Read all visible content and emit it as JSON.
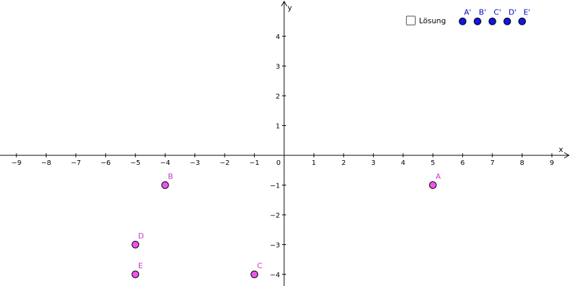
{
  "axes": {
    "x_label": "x",
    "y_label": "y",
    "x_ticks": [
      "−9",
      "−8",
      "−7",
      "−6",
      "−5",
      "−4",
      "−3",
      "−2",
      "−1",
      "1",
      "2",
      "3",
      "4",
      "5",
      "6",
      "7",
      "8",
      "9"
    ],
    "x_tick_values": [
      -9,
      -8,
      -7,
      -6,
      -5,
      -4,
      -3,
      -2,
      -1,
      1,
      2,
      3,
      4,
      5,
      6,
      7,
      8,
      9
    ],
    "y_ticks": [
      "4",
      "3",
      "2",
      "1",
      "−1",
      "−2",
      "−3",
      "−4"
    ],
    "y_tick_values": [
      4,
      3,
      2,
      1,
      -1,
      -2,
      -3,
      -4
    ],
    "origin_label": "0",
    "xlim": [
      -9.5,
      9.5
    ],
    "ylim": [
      -4.2,
      5.2
    ]
  },
  "colors": {
    "point_fill": "#ee55ee",
    "point_label": "#cc33cc",
    "solution_fill": "#1515e6",
    "solution_label": "#0000cc"
  },
  "points": [
    {
      "label": "A",
      "x": 5,
      "y": -1
    },
    {
      "label": "B",
      "x": -4,
      "y": -1
    },
    {
      "label": "C",
      "x": -1,
      "y": -4
    },
    {
      "label": "D",
      "x": -5,
      "y": -3
    },
    {
      "label": "E",
      "x": -5,
      "y": -4
    }
  ],
  "solution_points": [
    {
      "label": "A'",
      "x": 6,
      "y": 4.5
    },
    {
      "label": "B'",
      "x": 6.5,
      "y": 4.5
    },
    {
      "label": "C'",
      "x": 7,
      "y": 4.5
    },
    {
      "label": "D'",
      "x": 7.5,
      "y": 4.5
    },
    {
      "label": "E'",
      "x": 8,
      "y": 4.5
    }
  ],
  "checkbox": {
    "label": "Lösung",
    "checked": false
  }
}
